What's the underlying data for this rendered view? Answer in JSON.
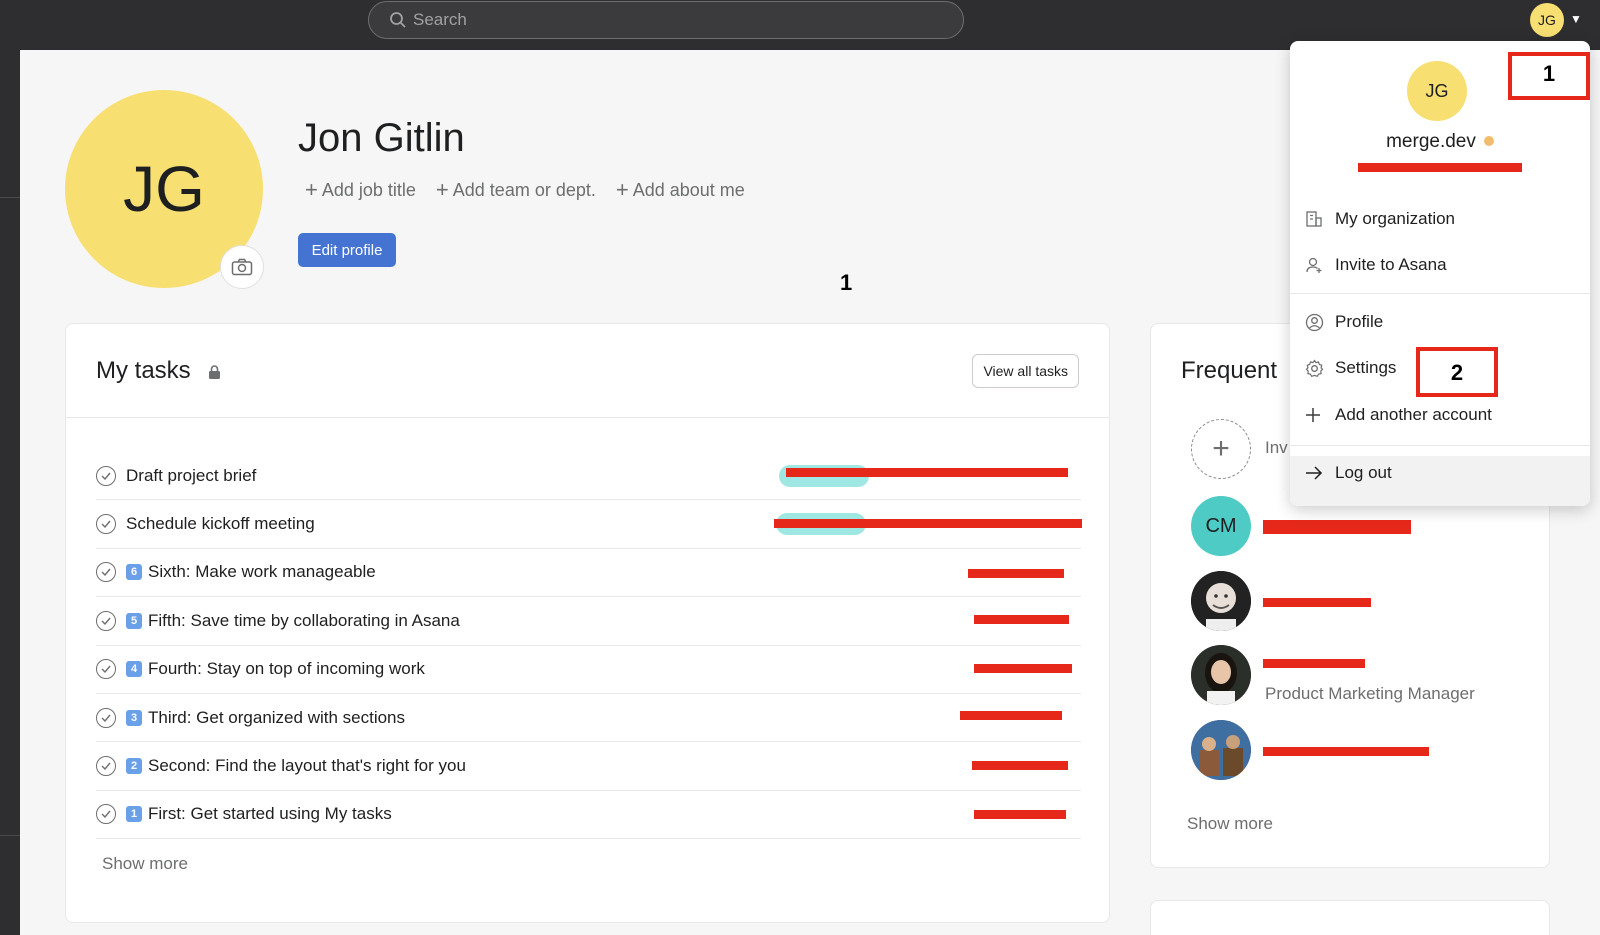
{
  "topbar": {
    "search_placeholder": "Search",
    "avatar_initials": "JG"
  },
  "profile": {
    "initials": "JG",
    "name": "Jon Gitlin",
    "links": [
      "Add job title",
      "Add team or dept.",
      "Add about me"
    ],
    "edit_label": "Edit profile",
    "marker": "1"
  },
  "tasks": {
    "title": "My tasks",
    "view_all": "View all tasks",
    "items": [
      {
        "name": "Draft project brief",
        "num": ""
      },
      {
        "name": "Schedule kickoff meeting",
        "num": ""
      },
      {
        "name": "Sixth: Make work manageable",
        "num": "6"
      },
      {
        "name": "Fifth: Save time by collaborating in Asana",
        "num": "5"
      },
      {
        "name": "Fourth: Stay on top of incoming work",
        "num": "4"
      },
      {
        "name": "Third: Get organized with sections",
        "num": "3"
      },
      {
        "name": "Second: Find the layout that's right for you",
        "num": "2"
      },
      {
        "name": "First: Get started using My tasks",
        "num": "1"
      }
    ],
    "show_more": "Show more"
  },
  "frequent": {
    "title": "Frequent",
    "invite": "Inv",
    "cm_initials": "CM",
    "subtitle": "Product Marketing Manager",
    "show_more": "Show more"
  },
  "dropdown": {
    "initials": "JG",
    "org": "merge.dev",
    "items": {
      "my_org": "My organization",
      "invite": "Invite to Asana",
      "profile": "Profile",
      "settings": "Settings",
      "add_account": "Add another account",
      "logout": "Log out"
    },
    "marker_top": "1",
    "marker_settings": "2"
  },
  "colors": {
    "accent": "#4573d2",
    "avatar": "#f8df72",
    "redact": "#e5281a",
    "cm": "#4ecbc4"
  }
}
